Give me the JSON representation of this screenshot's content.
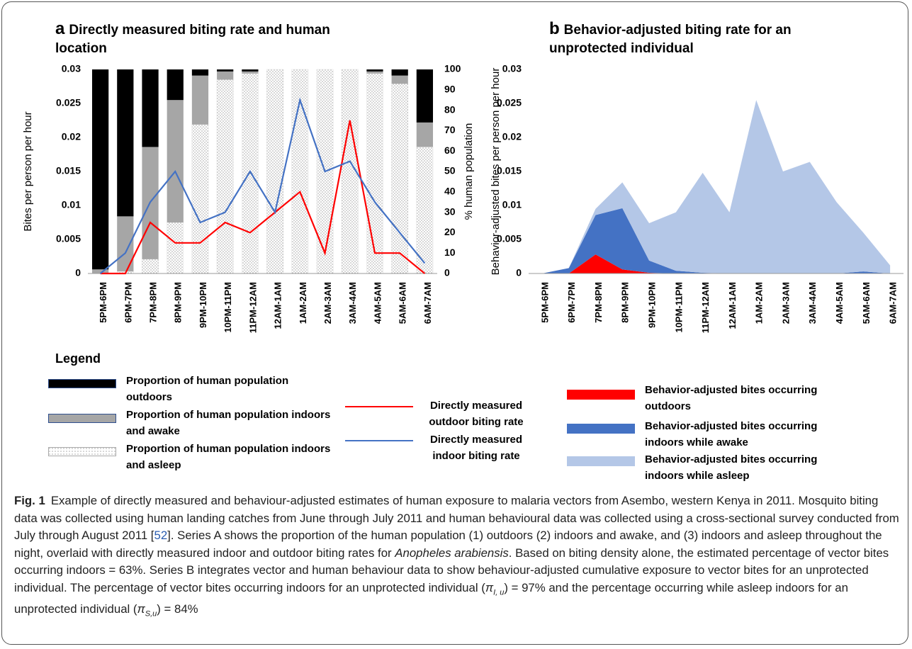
{
  "chart_data": [
    {
      "type": "combo",
      "panel": "a",
      "title": "Directly measured biting rate and human location",
      "ylabel": "Bites per person per hour",
      "y2label": "% human population",
      "categories": [
        "5PM-6PM",
        "6PM-7PM",
        "7PM-8PM",
        "8PM-9PM",
        "9PM-10PM",
        "10PM-11PM",
        "11PM-12AM",
        "12AM-1AM",
        "1AM-2AM",
        "2AM-3AM",
        "3AM-4AM",
        "4AM-5AM",
        "5AM-6AM",
        "6AM-7AM"
      ],
      "ylim": [
        0,
        0.03
      ],
      "yticks": [
        0,
        0.005,
        0.01,
        0.015,
        0.02,
        0.025,
        0.03
      ],
      "y2lim": [
        0,
        100
      ],
      "y2ticks": [
        0,
        10,
        20,
        30,
        40,
        50,
        60,
        70,
        80,
        90,
        100
      ],
      "series": [
        {
          "name": "Proportion of human population outdoors",
          "type": "bar",
          "axis": "y2",
          "color": "#000000",
          "values": [
            98,
            72,
            38,
            15,
            3,
            1,
            1,
            0,
            0,
            0,
            0,
            1,
            3,
            26
          ]
        },
        {
          "name": "Proportion of human population indoors and awake",
          "type": "bar",
          "axis": "y2",
          "color": "#a6a6a6",
          "values": [
            2,
            27,
            55,
            60,
            24,
            4,
            1,
            0,
            0,
            0,
            0,
            1,
            4,
            12
          ]
        },
        {
          "name": "Proportion of human population indoors and asleep",
          "type": "bar",
          "axis": "y2",
          "color": "#ffffff",
          "pattern": "dots",
          "values": [
            0,
            1,
            7,
            25,
            73,
            95,
            98,
            100,
            100,
            100,
            100,
            98,
            93,
            62
          ]
        },
        {
          "name": "Directly measured outdoor biting rate",
          "type": "line",
          "color": "#ff0000",
          "values": [
            0,
            0,
            0.0075,
            0.0045,
            0.0045,
            0.0075,
            0.006,
            0.009,
            0.012,
            0.003,
            0.0225,
            0.003,
            0.003,
            0
          ]
        },
        {
          "name": "Directly measured indoor biting rate",
          "type": "line",
          "color": "#4472c4",
          "values": [
            0,
            0.003,
            0.0105,
            0.015,
            0.0075,
            0.009,
            0.015,
            0.009,
            0.0255,
            0.015,
            0.0165,
            0.0105,
            0.006,
            0.0015
          ]
        }
      ]
    },
    {
      "type": "area",
      "stacked": true,
      "panel": "b",
      "title": "Behavior-adjusted biting rate for an unprotected individual",
      "ylabel": "Behavior-adjusted bites per person per hour",
      "categories": [
        "5PM-6PM",
        "6PM-7PM",
        "7PM-8PM",
        "8PM-9PM",
        "9PM-10PM",
        "10PM-11PM",
        "11PM-12AM",
        "12AM-1AM",
        "1AM-2AM",
        "2AM-3AM",
        "3AM-4AM",
        "4AM-5AM",
        "5AM-6AM",
        "6AM-7AM"
      ],
      "ylim": [
        0,
        0.03
      ],
      "yticks": [
        0,
        0.005,
        0.01,
        0.015,
        0.02,
        0.025,
        0.03
      ],
      "series": [
        {
          "name": "Behavior-adjusted bites occurring outdoors",
          "color": "#ff0000",
          "values": [
            0,
            0,
            0.0028,
            0.0006,
            0.0001,
            0,
            0,
            0,
            0,
            0,
            0,
            0,
            0,
            0
          ]
        },
        {
          "name": "Behavior-adjusted bites occurring indoors while awake",
          "color": "#4472c4",
          "values": [
            0,
            0.0008,
            0.0058,
            0.009,
            0.0018,
            0.0004,
            0.0001,
            0,
            0,
            0,
            0,
            0,
            0.0003,
            0
          ]
        },
        {
          "name": "Behavior-adjusted bites occurring indoors while asleep",
          "color": "#b4c7e7",
          "values": [
            0,
            0,
            0.0009,
            0.0038,
            0.0055,
            0.0086,
            0.0147,
            0.009,
            0.0255,
            0.015,
            0.0164,
            0.0105,
            0.0057,
            0.0012
          ]
        }
      ]
    }
  ],
  "legend_title": "Legend",
  "caption": {
    "label": "Fig. 1",
    "runs": [
      {
        "text": "Example of directly measured and behaviour-adjusted estimates of human exposure to malaria vectors from Asembo, western Kenya in 2011. Mosquito biting data was collected using human landing catches from June through July 2011 and human behavioural data was collected using a cross-sectional survey conducted from July through August 2011 [",
        "style": "normal"
      },
      {
        "text": "52",
        "style": "link"
      },
      {
        "text": "]. Series A shows the proportion of the human population (1) outdoors (2) indoors and awake, and (3) indoors and asleep throughout the night, overlaid with directly measured indoor and outdoor biting rates for ",
        "style": "normal"
      },
      {
        "text": "Anopheles arabiensis",
        "style": "italic"
      },
      {
        "text": ". Based on biting density alone, the estimated percentage of vector bites occurring indoors = 63%. Series B integrates vector and human behaviour data to show behaviour-adjusted cumulative exposure to vector bites for an unprotected individual. The percentage of vector bites occurring indoors for an unprotected individual (",
        "style": "normal"
      },
      {
        "text": "π",
        "style": "italic"
      },
      {
        "text": "I, u",
        "style": "sub"
      },
      {
        "text": ") = 97% and the percentage occurring while asleep indoors for an unprotected individual (",
        "style": "normal"
      },
      {
        "text": "π",
        "style": "italic"
      },
      {
        "text": "S,u",
        "style": "sub"
      },
      {
        "text": ") = 84%",
        "style": "normal"
      }
    ]
  }
}
